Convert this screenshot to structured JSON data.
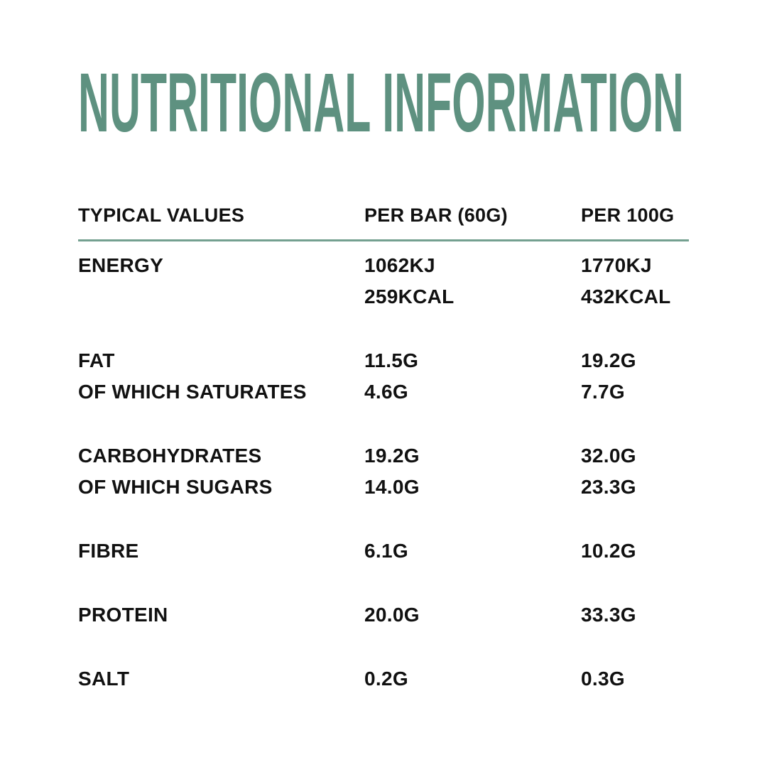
{
  "title": "NUTRITIONAL INFORMATION",
  "colors": {
    "accent_green": "#5E9180",
    "divider_green": "#74A090",
    "text": "#111111",
    "background": "#FFFFFF"
  },
  "table": {
    "headers": [
      "TYPICAL VALUES",
      "PER BAR (60G)",
      "PER 100G"
    ],
    "groups": [
      {
        "name": "energy",
        "rows": [
          [
            "ENERGY",
            "1062KJ",
            "1770KJ"
          ],
          [
            "",
            "259KCAL",
            "432KCAL"
          ]
        ]
      },
      {
        "name": "fat",
        "rows": [
          [
            "FAT",
            "11.5G",
            "19.2G"
          ],
          [
            "OF WHICH SATURATES",
            "4.6G",
            "7.7G"
          ]
        ]
      },
      {
        "name": "carbohydrates",
        "rows": [
          [
            "CARBOHYDRATES",
            "19.2G",
            "32.0G"
          ],
          [
            "OF WHICH SUGARS",
            "14.0G",
            "23.3G"
          ]
        ]
      },
      {
        "name": "fibre",
        "rows": [
          [
            "FIBRE",
            "6.1G",
            "10.2G"
          ]
        ]
      },
      {
        "name": "protein",
        "rows": [
          [
            "PROTEIN",
            "20.0G",
            "33.3G"
          ]
        ]
      },
      {
        "name": "salt",
        "rows": [
          [
            "SALT",
            "0.2G",
            "0.3G"
          ]
        ]
      }
    ]
  }
}
